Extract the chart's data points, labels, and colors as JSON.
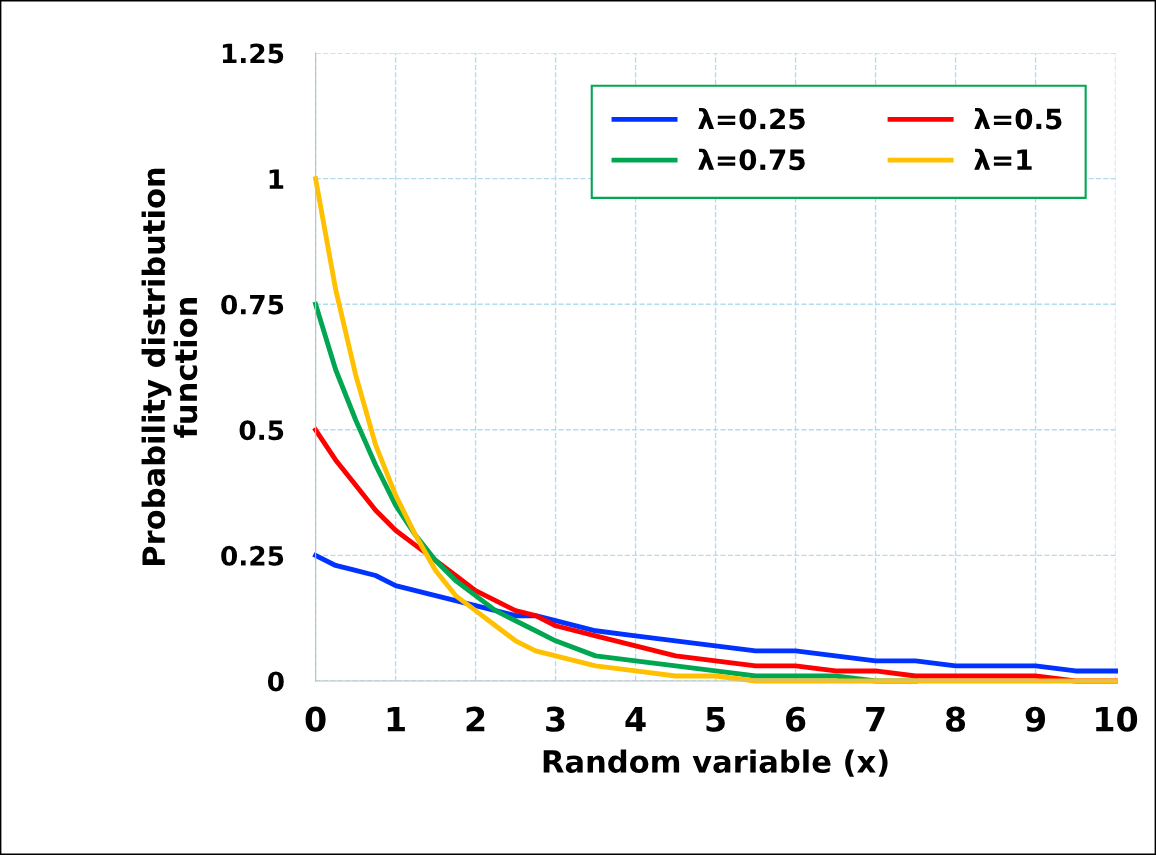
{
  "chart_data": {
    "type": "line",
    "xlabel": "Random variable (x)",
    "ylabel": "Probability distribution\nfunction",
    "x": [
      0,
      0.25,
      0.5,
      0.75,
      1,
      1.25,
      1.5,
      1.75,
      2,
      2.25,
      2.5,
      2.75,
      3,
      3.5,
      4,
      4.5,
      5,
      5.5,
      6,
      6.5,
      7,
      7.5,
      8,
      8.5,
      9,
      9.5,
      10
    ],
    "series": [
      {
        "name": "λ=0.25",
        "color": "#0033ff",
        "values": [
          0.25,
          0.23,
          0.22,
          0.21,
          0.19,
          0.18,
          0.17,
          0.16,
          0.15,
          0.14,
          0.13,
          0.13,
          0.12,
          0.1,
          0.09,
          0.08,
          0.07,
          0.06,
          0.06,
          0.05,
          0.04,
          0.04,
          0.03,
          0.03,
          0.03,
          0.02,
          0.02
        ]
      },
      {
        "name": "λ=0.5",
        "color": "#ff0000",
        "values": [
          0.5,
          0.44,
          0.39,
          0.34,
          0.3,
          0.27,
          0.24,
          0.21,
          0.18,
          0.16,
          0.14,
          0.13,
          0.11,
          0.09,
          0.07,
          0.05,
          0.04,
          0.03,
          0.03,
          0.02,
          0.02,
          0.01,
          0.01,
          0.01,
          0.01,
          0,
          0
        ]
      },
      {
        "name": "λ=0.75",
        "color": "#00a651",
        "values": [
          0.75,
          0.62,
          0.52,
          0.43,
          0.35,
          0.29,
          0.24,
          0.2,
          0.17,
          0.14,
          0.12,
          0.1,
          0.08,
          0.05,
          0.04,
          0.03,
          0.02,
          0.01,
          0.01,
          0.01,
          0,
          0,
          null,
          null,
          null,
          null,
          null
        ]
      },
      {
        "name": "λ=1",
        "color": "#ffc000",
        "values": [
          1,
          0.78,
          0.61,
          0.47,
          0.37,
          0.29,
          0.22,
          0.17,
          0.14,
          0.11,
          0.08,
          0.06,
          0.05,
          0.03,
          0.02,
          0.01,
          0.01,
          0,
          0,
          0,
          0,
          0,
          0,
          0,
          0,
          0,
          0
        ]
      }
    ],
    "xlim": [
      0,
      10
    ],
    "xticks": [
      0,
      1,
      2,
      3,
      4,
      5,
      6,
      7,
      8,
      9,
      10
    ],
    "ylim": [
      0,
      1.25
    ],
    "yticks": [
      0,
      0.25,
      0.5,
      0.75,
      1,
      1.25
    ],
    "grid": true,
    "legend": "top right",
    "marker": "none",
    "line_style": "solid"
  }
}
